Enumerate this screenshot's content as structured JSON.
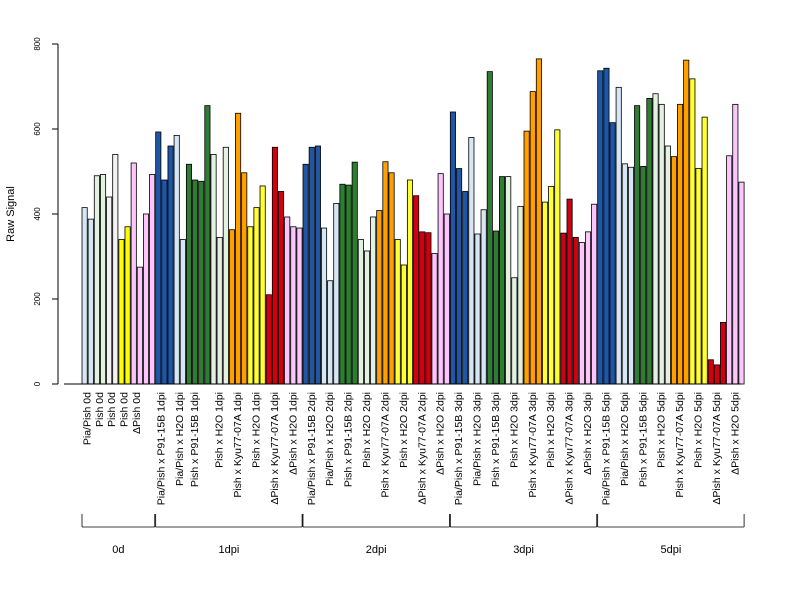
{
  "chart_data": {
    "type": "bar",
    "title": "",
    "xlabel": "",
    "ylabel": "Raw Signal",
    "ylim": [
      0,
      800
    ],
    "yticks": [
      0,
      200,
      400,
      600,
      800
    ],
    "grid": false,
    "groups": [
      {
        "label": "0d",
        "categories": [
          {
            "label": "Pia/Pish 0d",
            "values": [
              415,
              388
            ],
            "color": "#d7e6f4"
          },
          {
            "label": "Pish 0d",
            "values": [
              490,
              493
            ],
            "color": "#e3f1e0"
          },
          {
            "label": "Pish 0d",
            "values": [
              440,
              540
            ],
            "color": "#f3f3f3"
          },
          {
            "label": "Pish 0d",
            "values": [
              340,
              370
            ],
            "color": "#ffff00"
          },
          {
            "label": "ΔPish 0d",
            "values": [
              520,
              275
            ],
            "color": "#fcc5fc"
          },
          {
            "label": "",
            "values": [
              400,
              493
            ],
            "color": "#fcc5fc"
          }
        ]
      },
      {
        "label": "1dpi",
        "categories": [
          {
            "label": "Pia/Pish x P91-15B 1dpi",
            "values": [
              593,
              480
            ],
            "color": "#1f56a5"
          },
          {
            "label": "",
            "values": [
              560
            ],
            "color": "#1f56a5"
          },
          {
            "label": "Pia/Pish x H2O 1dpi",
            "values": [
              585,
              340
            ],
            "color": "#d7e6f4"
          },
          {
            "label": "Pish x P91-15B 1dpi",
            "values": [
              517,
              480,
              477
            ],
            "color": "#2e7d32"
          },
          {
            "label": "",
            "values": [
              655
            ],
            "color": "#2e7d32"
          },
          {
            "label": "Pish x H2O 1dpi",
            "values": [
              540,
              345,
              557
            ],
            "color": "#e3f1e0"
          },
          {
            "label": "Pish x Kyu77-07A 1dpi",
            "values": [
              363,
              637,
              497
            ],
            "color": "#ff9f00"
          },
          {
            "label": "Pish x H2O 1dpi",
            "values": [
              370,
              415,
              466
            ],
            "color": "#ffff33"
          },
          {
            "label": "ΔPish x Kyu77-07A 1dpi",
            "values": [
              210,
              557,
              453
            ],
            "color": "#d10010"
          },
          {
            "label": "ΔPish x H2O 1dpi",
            "values": [
              393,
              370,
              367
            ],
            "color": "#fcc5fc"
          }
        ]
      },
      {
        "label": "2dpi",
        "categories": [
          {
            "label": "Pia/Pish x P91-15B 2dpi",
            "values": [
              517,
              557,
              560
            ],
            "color": "#1f56a5"
          },
          {
            "label": "Pia/Pish x H2O 2dpi",
            "values": [
              367,
              243,
              425
            ],
            "color": "#d7e6f4"
          },
          {
            "label": "Pish x P91-15B 2dpi",
            "values": [
              470,
              468,
              522
            ],
            "color": "#2e7d32"
          },
          {
            "label": "Pish x H2O 2dpi",
            "values": [
              340,
              313,
              393
            ],
            "color": "#e3f1e0"
          },
          {
            "label": "Pish x Kyu77-07A 2dpi",
            "values": [
              408,
              523,
              497
            ],
            "color": "#ff9f00"
          },
          {
            "label": "Pish x H2O 2dpi",
            "values": [
              340,
              280,
              480
            ],
            "color": "#ffff33"
          },
          {
            "label": "ΔPish x Kyu77-07A 2dpi",
            "values": [
              443,
              358,
              356
            ],
            "color": "#d10010"
          },
          {
            "label": "ΔPish x H2O 2dpi",
            "values": [
              307,
              495,
              400
            ],
            "color": "#fcc5fc"
          }
        ]
      },
      {
        "label": "3dpi",
        "categories": [
          {
            "label": "Pia/Pish x P91-15B 3dpi",
            "values": [
              640,
              507,
              453
            ],
            "color": "#1f56a5"
          },
          {
            "label": "Pia/Pish x H2O 3dpi",
            "values": [
              580,
              353,
              410
            ],
            "color": "#d7e6f4"
          },
          {
            "label": "Pish x P91-15B 3dpi",
            "values": [
              735,
              360,
              488
            ],
            "color": "#2e7d32"
          },
          {
            "label": "Pish x H2O 3dpi",
            "values": [
              488,
              250,
              418
            ],
            "color": "#e3f1e0"
          },
          {
            "label": "Pish x Kyu77-07A 3dpi",
            "values": [
              595,
              688,
              765
            ],
            "color": "#ff9f00"
          },
          {
            "label": "Pish x H2O 3dpi",
            "values": [
              428,
              465,
              598
            ],
            "color": "#ffff33"
          },
          {
            "label": "ΔPish x Kyu77-07A 3dpi",
            "values": [
              355,
              435,
              345
            ],
            "color": "#d10010"
          },
          {
            "label": "ΔPish x H2O 3dpi",
            "values": [
              333,
              358,
              423
            ],
            "color": "#fcc5fc"
          }
        ]
      },
      {
        "label": "5dpi",
        "categories": [
          {
            "label": "Pia/Pish x P91-15B 5dpi",
            "values": [
              737,
              743,
              615
            ],
            "color": "#1f56a5"
          },
          {
            "label": "Pia/Pish x H2O 5dpi",
            "values": [
              698,
              518,
              510
            ],
            "color": "#d7e6f4"
          },
          {
            "label": "Pish x P91-15B 5dpi",
            "values": [
              655,
              512,
              672
            ],
            "color": "#2e7d32"
          },
          {
            "label": "Pish x H2O 5dpi",
            "values": [
              683,
              658,
              560
            ],
            "color": "#e3f1e0"
          },
          {
            "label": "Pish x Kyu77-07A 5dpi",
            "values": [
              535,
              658,
              762
            ],
            "color": "#ff9f00"
          },
          {
            "label": "Pish x H2O 5dpi",
            "values": [
              718,
              507,
              628
            ],
            "color": "#ffff33"
          },
          {
            "label": "ΔPish x Kyu77-07A 5dpi",
            "values": [
              57,
              45,
              145
            ],
            "color": "#d10010"
          },
          {
            "label": "ΔPish x H2O 5dpi",
            "values": [
              537,
              658,
              475
            ],
            "color": "#fcc5fc"
          }
        ]
      }
    ]
  }
}
